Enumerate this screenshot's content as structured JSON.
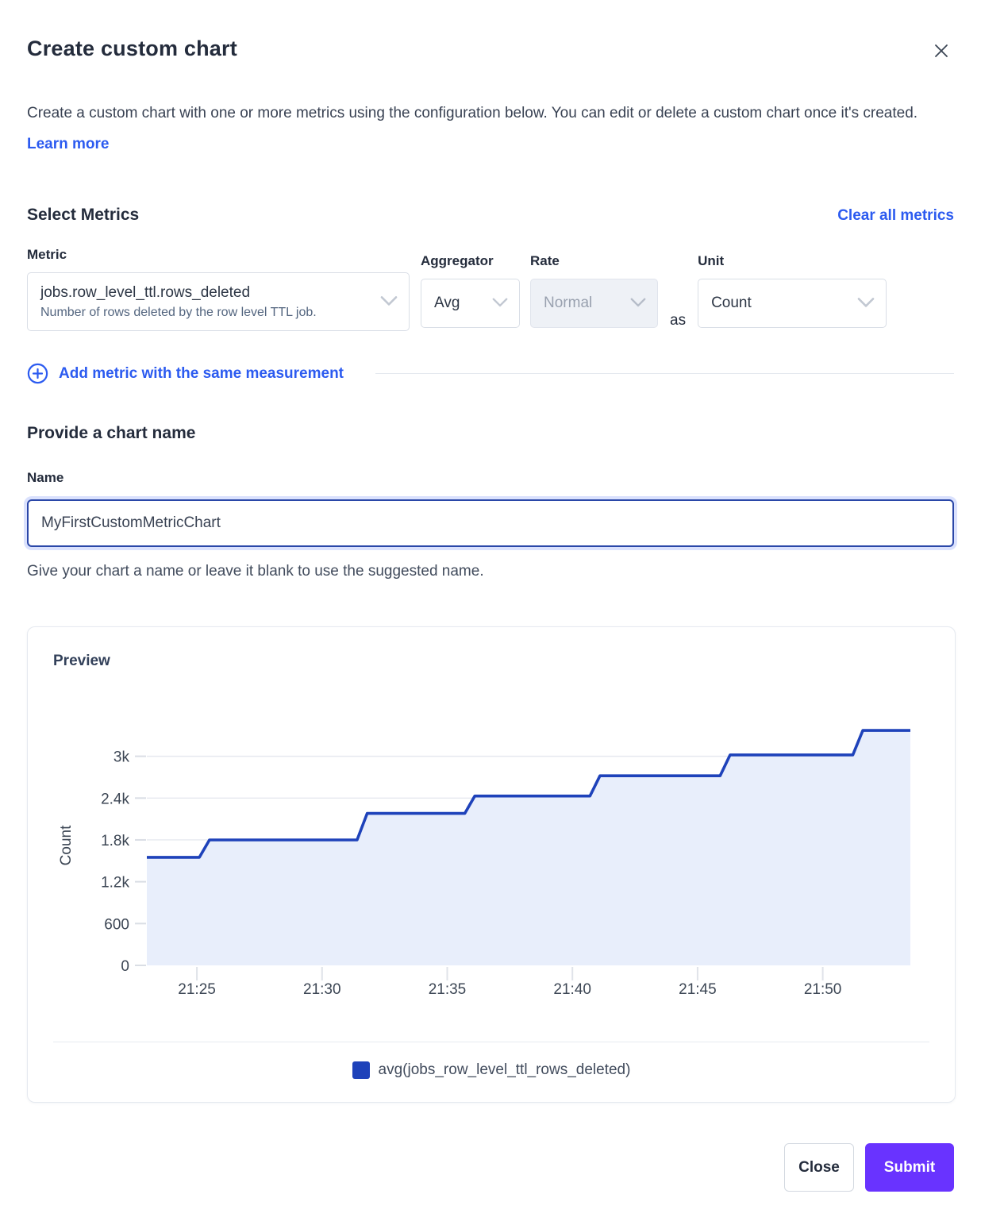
{
  "colors": {
    "link_blue": "#2c5bf0",
    "submit_purple": "#6933ff",
    "series_line": "#1e42ba",
    "series_fill": "#e8eefb",
    "grid_line": "#e6e9ef"
  },
  "dialog": {
    "title": "Create custom chart",
    "description": "Create a custom chart with one or more metrics using the configuration below. You can edit or delete a custom chart once it's created.",
    "learn_more_label": "Learn more"
  },
  "metrics_section": {
    "heading": "Select Metrics",
    "clear_all_label": "Clear all metrics",
    "metric": {
      "label": "Metric",
      "value": "jobs.row_level_ttl.rows_deleted",
      "description": "Number of rows deleted by the row level TTL job."
    },
    "aggregator": {
      "label": "Aggregator",
      "value": "Avg"
    },
    "rate": {
      "label": "Rate",
      "value": "Normal",
      "disabled": true
    },
    "as_label": "as",
    "unit": {
      "label": "Unit",
      "value": "Count"
    },
    "add_metric_label": "Add metric with the same measurement"
  },
  "name_section": {
    "heading": "Provide a chart name",
    "label": "Name",
    "value": "MyFirstCustomMetricChart",
    "helper": "Give your chart a name or leave it blank to use the suggested name."
  },
  "preview": {
    "heading": "Preview"
  },
  "chart_data": {
    "type": "area",
    "title": "Preview",
    "xlabel": "",
    "ylabel": "Count",
    "x_unit": "time of day (HH:MM), minutes stored as minutes after 21:00",
    "x_range": [
      23.0,
      53.5
    ],
    "ylim": [
      0,
      3440
    ],
    "grid": true,
    "legend_position": "bottom",
    "y_ticks": [
      {
        "v": 0,
        "label": "0"
      },
      {
        "v": 600,
        "label": "600"
      },
      {
        "v": 1200,
        "label": "1.2k"
      },
      {
        "v": 1800,
        "label": "1.8k"
      },
      {
        "v": 2400,
        "label": "2.4k"
      },
      {
        "v": 3000,
        "label": "3k"
      }
    ],
    "x_ticks": [
      {
        "t": 25,
        "label": "21:25"
      },
      {
        "t": 30,
        "label": "21:30"
      },
      {
        "t": 35,
        "label": "21:35"
      },
      {
        "t": 40,
        "label": "21:40"
      },
      {
        "t": 45,
        "label": "21:45"
      },
      {
        "t": 50,
        "label": "21:50"
      }
    ],
    "series": [
      {
        "name": "avg(jobs_row_level_ttl_rows_deleted)",
        "color": "#1e42ba",
        "fill": "#e8eefb",
        "points": [
          [
            23.0,
            1550
          ],
          [
            25.1,
            1550
          ],
          [
            25.5,
            1800
          ],
          [
            31.4,
            1800
          ],
          [
            31.8,
            2180
          ],
          [
            35.7,
            2180
          ],
          [
            36.1,
            2430
          ],
          [
            40.7,
            2430
          ],
          [
            41.1,
            2720
          ],
          [
            45.9,
            2720
          ],
          [
            46.3,
            3020
          ],
          [
            51.2,
            3020
          ],
          [
            51.6,
            3370
          ],
          [
            53.5,
            3370
          ]
        ]
      }
    ]
  },
  "footer": {
    "close_label": "Close",
    "submit_label": "Submit"
  }
}
